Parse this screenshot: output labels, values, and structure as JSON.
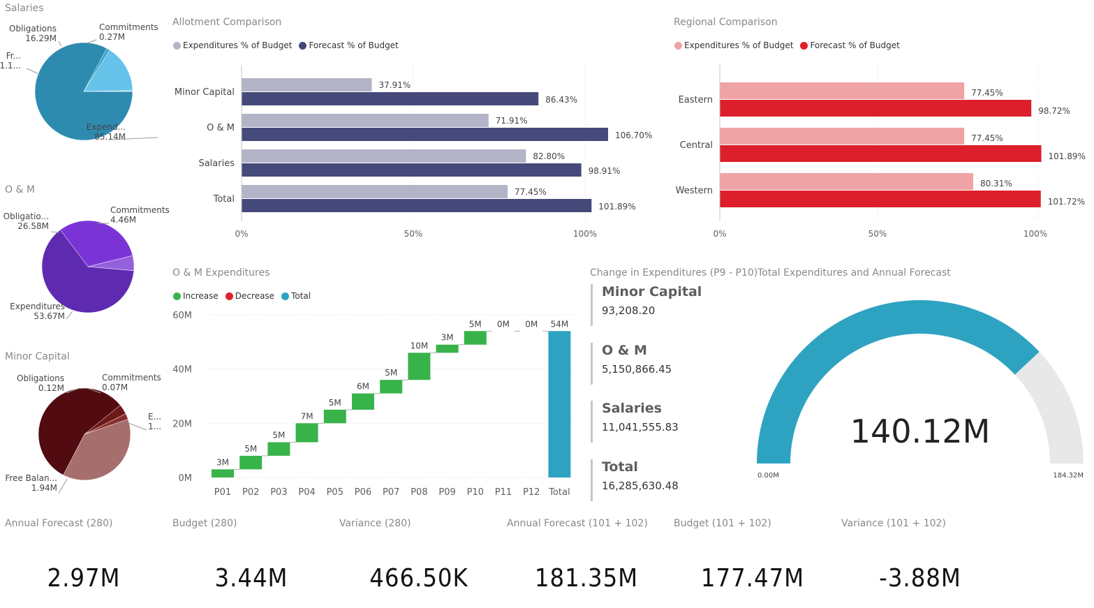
{
  "pies": [
    {
      "title": "Salaries",
      "colors": [
        "#2e8bb0",
        "#3aa3c9",
        "#65c3ea",
        "#a9dcf2"
      ],
      "slices": [
        {
          "label": "Expend...",
          "value_label": "85.14M",
          "value": 85.14
        },
        {
          "label": "Fr...",
          "value_label": "1.1...",
          "value": 1.1
        },
        {
          "label": "Obligations",
          "value_label": "16.29M",
          "value": 16.29
        },
        {
          "label": "Commitments",
          "value_label": "0.27M",
          "value": 0.27
        }
      ]
    },
    {
      "title": "O & M",
      "colors": [
        "#5e2bb0",
        "#7a34d6",
        "#9560dc"
      ],
      "slices": [
        {
          "label": "Expenditures",
          "value_label": "53.67M",
          "value": 53.67
        },
        {
          "label": "Obligatio...",
          "value_label": "26.58M",
          "value": 26.58
        },
        {
          "label": "Commitments",
          "value_label": "4.46M",
          "value": 4.46
        }
      ]
    },
    {
      "title": "Minor Capital",
      "colors": [
        "#a76e6e",
        "#520b10",
        "#6e1818",
        "#8a2e2e"
      ],
      "slices": [
        {
          "label": "E...",
          "value_label": "1...",
          "value": 1.3
        },
        {
          "label": "Free Balan...",
          "value_label": "1.94M",
          "value": 1.94
        },
        {
          "label": "Obligations",
          "value_label": "0.12M",
          "value": 0.12
        },
        {
          "label": "Commitments",
          "value_label": "0.07M",
          "value": 0.07
        }
      ]
    }
  ],
  "allotment": {
    "title": "Allotment Comparison",
    "legend": [
      {
        "label": "Expenditures % of Budget",
        "color": "#b4b4c8"
      },
      {
        "label": "Forecast % of Budget",
        "color": "#454a7a"
      }
    ],
    "categories": [
      "Minor Capital",
      "O & M",
      "Salaries",
      "Total"
    ],
    "expenditures": [
      37.91,
      71.91,
      82.8,
      77.45
    ],
    "forecast": [
      86.43,
      106.7,
      98.91,
      101.89
    ],
    "exp_labels": [
      "37.91%",
      "71.91%",
      "82.80%",
      "77.45%"
    ],
    "fc_labels": [
      "86.43%",
      "106.70%",
      "98.91%",
      "101.89%"
    ],
    "ticks": [
      "0%",
      "50%",
      "100%"
    ]
  },
  "regional": {
    "title": "Regional Comparison",
    "legend": [
      {
        "label": "Expenditures % of Budget",
        "color": "#f0a3a6"
      },
      {
        "label": "Forecast % of Budget",
        "color": "#dc1f2b"
      }
    ],
    "categories": [
      "Eastern",
      "Central",
      "Western"
    ],
    "expenditures": [
      77.45,
      77.45,
      80.31
    ],
    "forecast": [
      98.72,
      101.89,
      101.72
    ],
    "exp_labels": [
      "77.45%",
      "77.45%",
      "80.31%"
    ],
    "fc_labels": [
      "98.72%",
      "101.89%",
      "101.72%"
    ],
    "ticks": [
      "0%",
      "50%",
      "100%"
    ]
  },
  "waterfall": {
    "title": "O & M Expenditures",
    "legend": [
      {
        "label": "Increase",
        "color": "#37b34a"
      },
      {
        "label": "Decrease",
        "color": "#dc1f2b"
      },
      {
        "label": "Total",
        "color": "#2ea3c1"
      }
    ],
    "categories": [
      "P01",
      "P02",
      "P03",
      "P04",
      "P05",
      "P06",
      "P07",
      "P08",
      "P09",
      "P10",
      "P11",
      "P12",
      "Total"
    ],
    "values": [
      3,
      5,
      5,
      7,
      5,
      6,
      5,
      10,
      3,
      5,
      0,
      0,
      54
    ],
    "labels": [
      "3M",
      "5M",
      "5M",
      "7M",
      "5M",
      "6M",
      "5M",
      "10M",
      "3M",
      "5M",
      "0M",
      "0M",
      "54M"
    ],
    "ticks": [
      "0M",
      "20M",
      "40M",
      "60M"
    ]
  },
  "change": {
    "title": "Change in Expenditures (P9 - P10)",
    "cards": [
      {
        "label": "Minor Capital",
        "value": "93,208.20"
      },
      {
        "label": "O & M",
        "value": "5,150,866.45"
      },
      {
        "label": "Salaries",
        "value": "11,041,555.83"
      },
      {
        "label": "Total",
        "value": "16,285,630.48"
      }
    ]
  },
  "gauge": {
    "title": "Total Expenditures and Annual Forecast",
    "value": 140.12,
    "max": 184.32,
    "value_label": "140.12M",
    "min_label": "0.00M",
    "max_label": "184.32M"
  },
  "kpis": [
    {
      "label": "Annual Forecast (280)",
      "value": "2.97M"
    },
    {
      "label": "Budget (280)",
      "value": "3.44M"
    },
    {
      "label": "Variance (280)",
      "value": "466.50K"
    },
    {
      "label": "Annual Forecast (101 + 102)",
      "value": "181.35M"
    },
    {
      "label": "Budget (101 + 102)",
      "value": "177.47M"
    },
    {
      "label": "Variance (101 + 102)",
      "value": "-3.88M"
    }
  ],
  "chart_data": [
    {
      "type": "pie",
      "title": "Salaries",
      "labels": [
        "Expenditures",
        "Free Balance",
        "Obligations",
        "Commitments"
      ],
      "values": [
        85.14,
        1.1,
        16.29,
        0.27
      ]
    },
    {
      "type": "pie",
      "title": "O & M",
      "labels": [
        "Expenditures",
        "Obligations",
        "Commitments"
      ],
      "values": [
        53.67,
        26.58,
        4.46
      ]
    },
    {
      "type": "pie",
      "title": "Minor Capital",
      "labels": [
        "Expenditures",
        "Free Balance",
        "Obligations",
        "Commitments"
      ],
      "values": [
        1.3,
        1.94,
        0.12,
        0.07
      ]
    },
    {
      "type": "bar",
      "title": "Allotment Comparison",
      "categories": [
        "Minor Capital",
        "O & M",
        "Salaries",
        "Total"
      ],
      "series": [
        {
          "name": "Expenditures % of Budget",
          "values": [
            37.91,
            71.91,
            82.8,
            77.45
          ]
        },
        {
          "name": "Forecast % of Budget",
          "values": [
            86.43,
            106.7,
            98.91,
            101.89
          ]
        }
      ]
    },
    {
      "type": "bar",
      "title": "Regional Comparison",
      "categories": [
        "Eastern",
        "Central",
        "Western"
      ],
      "series": [
        {
          "name": "Expenditures % of Budget",
          "values": [
            77.45,
            77.45,
            80.31
          ]
        },
        {
          "name": "Forecast % of Budget",
          "values": [
            98.72,
            101.89,
            101.72
          ]
        }
      ]
    },
    {
      "type": "bar",
      "title": "O & M Expenditures",
      "categories": [
        "P01",
        "P02",
        "P03",
        "P04",
        "P05",
        "P06",
        "P07",
        "P08",
        "P09",
        "P10",
        "P11",
        "P12",
        "Total"
      ],
      "values": [
        3,
        5,
        5,
        7,
        5,
        6,
        5,
        10,
        3,
        5,
        0,
        0,
        54
      ],
      "ylim": [
        0,
        60
      ]
    }
  ]
}
